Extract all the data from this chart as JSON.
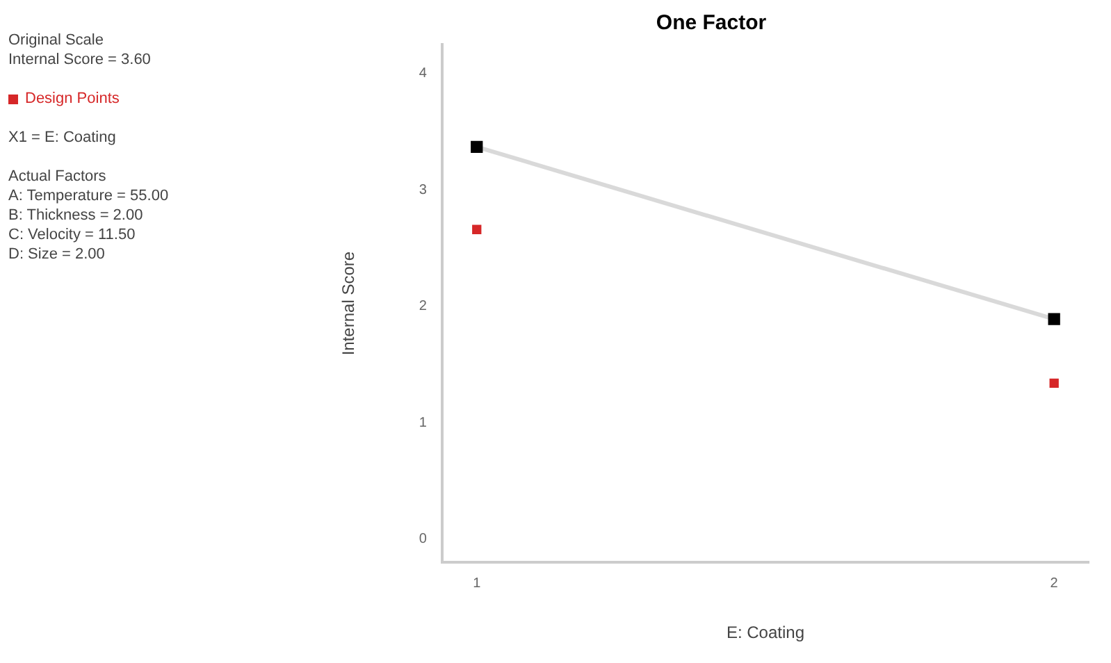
{
  "chart_data": {
    "type": "scatter",
    "title": "One Factor",
    "xlabel": "E: Coating",
    "ylabel": "Internal Score",
    "categories": [
      "1",
      "2"
    ],
    "ylim": [
      -0.2,
      4.25
    ],
    "yticks": [
      0,
      1,
      2,
      3,
      4
    ],
    "legend": "left",
    "marker": "square",
    "grid": false,
    "annotations": [
      "Original Scale",
      "Internal Score = 3.60",
      "X1 = E: Coating",
      "Actual Factors",
      "A: Temperature = 55.00",
      "B: Thickness = 2.00",
      "C: Velocity = 11.50",
      "D: Size = 2.00"
    ],
    "series": [
      {
        "type": "line",
        "color": "#000000",
        "values": [
          3.37,
          1.89
        ]
      },
      {
        "name": "Design Points",
        "type": "scatter",
        "color": "#d62728",
        "values": [
          2.66,
          1.34
        ]
      }
    ]
  }
}
